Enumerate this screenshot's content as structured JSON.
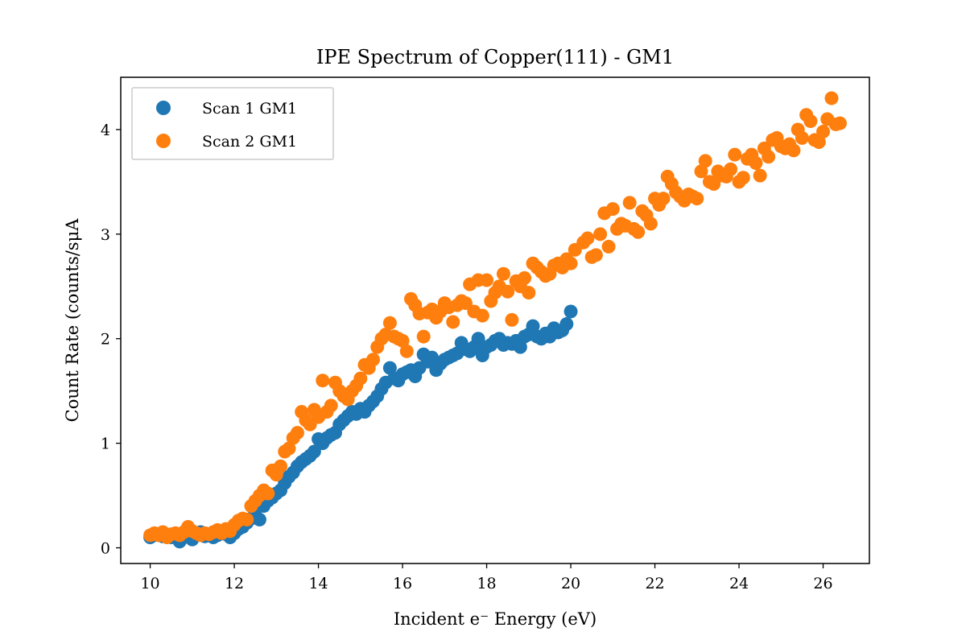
{
  "chart_data": {
    "type": "scatter",
    "title": "IPE Spectrum of Copper(111) - GM1",
    "xlabel": "Incident e⁻ Energy (eV)",
    "ylabel": "Count Rate (counts/sμA",
    "xlim": [
      9.3,
      27.1
    ],
    "ylim": [
      -0.15,
      4.5
    ],
    "xticks": [
      "10",
      "12",
      "14",
      "16",
      "18",
      "20",
      "22",
      "24",
      "26"
    ],
    "yticks": [
      "0",
      "1",
      "2",
      "3",
      "4"
    ],
    "grid": false,
    "legend_position": "top-left",
    "series": [
      {
        "name": "Scan 1 GM1",
        "color": "#1f77b4",
        "points": [
          [
            10.0,
            0.1
          ],
          [
            10.1,
            0.12
          ],
          [
            10.2,
            0.13
          ],
          [
            10.3,
            0.11
          ],
          [
            10.4,
            0.12
          ],
          [
            10.5,
            0.1
          ],
          [
            10.6,
            0.12
          ],
          [
            10.7,
            0.06
          ],
          [
            10.8,
            0.1
          ],
          [
            10.9,
            0.13
          ],
          [
            11.0,
            0.08
          ],
          [
            11.1,
            0.12
          ],
          [
            11.2,
            0.15
          ],
          [
            11.3,
            0.11
          ],
          [
            11.4,
            0.13
          ],
          [
            11.5,
            0.1
          ],
          [
            11.6,
            0.12
          ],
          [
            11.7,
            0.14
          ],
          [
            11.8,
            0.13
          ],
          [
            11.9,
            0.1
          ],
          [
            12.0,
            0.14
          ],
          [
            12.1,
            0.18
          ],
          [
            12.2,
            0.2
          ],
          [
            12.3,
            0.24
          ],
          [
            12.4,
            0.28
          ],
          [
            12.5,
            0.31
          ],
          [
            12.6,
            0.27
          ],
          [
            12.7,
            0.4
          ],
          [
            12.8,
            0.45
          ],
          [
            12.9,
            0.48
          ],
          [
            13.0,
            0.52
          ],
          [
            13.1,
            0.55
          ],
          [
            13.2,
            0.62
          ],
          [
            13.3,
            0.68
          ],
          [
            13.4,
            0.72
          ],
          [
            13.5,
            0.78
          ],
          [
            13.6,
            0.82
          ],
          [
            13.7,
            0.85
          ],
          [
            13.8,
            0.88
          ],
          [
            13.9,
            0.92
          ],
          [
            14.0,
            1.04
          ],
          [
            14.1,
            1.0
          ],
          [
            14.2,
            1.05
          ],
          [
            14.3,
            1.08
          ],
          [
            14.4,
            1.1
          ],
          [
            14.5,
            1.18
          ],
          [
            14.6,
            1.22
          ],
          [
            14.7,
            1.26
          ],
          [
            14.8,
            1.3
          ],
          [
            14.9,
            1.28
          ],
          [
            15.0,
            1.33
          ],
          [
            15.1,
            1.3
          ],
          [
            15.2,
            1.36
          ],
          [
            15.3,
            1.4
          ],
          [
            15.4,
            1.45
          ],
          [
            15.5,
            1.52
          ],
          [
            15.6,
            1.58
          ],
          [
            15.7,
            1.72
          ],
          [
            15.8,
            1.62
          ],
          [
            15.9,
            1.6
          ],
          [
            16.0,
            1.66
          ],
          [
            16.1,
            1.68
          ],
          [
            16.2,
            1.7
          ],
          [
            16.3,
            1.64
          ],
          [
            16.4,
            1.72
          ],
          [
            16.5,
            1.85
          ],
          [
            16.6,
            1.78
          ],
          [
            16.7,
            1.82
          ],
          [
            16.8,
            1.7
          ],
          [
            16.9,
            1.76
          ],
          [
            17.0,
            1.8
          ],
          [
            17.1,
            1.82
          ],
          [
            17.2,
            1.84
          ],
          [
            17.3,
            1.86
          ],
          [
            17.4,
            1.96
          ],
          [
            17.5,
            1.9
          ],
          [
            17.6,
            1.88
          ],
          [
            17.7,
            1.92
          ],
          [
            17.8,
            2.0
          ],
          [
            17.9,
            1.84
          ],
          [
            18.0,
            1.92
          ],
          [
            18.1,
            1.94
          ],
          [
            18.2,
            1.98
          ],
          [
            18.3,
            2.0
          ],
          [
            18.4,
            1.94
          ],
          [
            18.5,
            1.96
          ],
          [
            18.6,
            1.95
          ],
          [
            18.7,
            1.98
          ],
          [
            18.8,
            1.92
          ],
          [
            18.9,
            2.02
          ],
          [
            19.0,
            2.04
          ],
          [
            19.1,
            2.12
          ],
          [
            19.2,
            2.02
          ],
          [
            19.3,
            2.0
          ],
          [
            19.4,
            2.05
          ],
          [
            19.5,
            2.02
          ],
          [
            19.6,
            2.1
          ],
          [
            19.7,
            2.06
          ],
          [
            19.8,
            2.08
          ],
          [
            19.9,
            2.14
          ],
          [
            20.0,
            2.26
          ]
        ]
      },
      {
        "name": "Scan 2 GM1",
        "color": "#ff7f0e",
        "points": [
          [
            10.0,
            0.12
          ],
          [
            10.1,
            0.14
          ],
          [
            10.2,
            0.12
          ],
          [
            10.3,
            0.15
          ],
          [
            10.4,
            0.1
          ],
          [
            10.5,
            0.13
          ],
          [
            10.6,
            0.14
          ],
          [
            10.7,
            0.12
          ],
          [
            10.8,
            0.15
          ],
          [
            10.9,
            0.2
          ],
          [
            11.0,
            0.16
          ],
          [
            11.1,
            0.14
          ],
          [
            11.2,
            0.12
          ],
          [
            11.3,
            0.14
          ],
          [
            11.4,
            0.13
          ],
          [
            11.5,
            0.15
          ],
          [
            11.6,
            0.17
          ],
          [
            11.7,
            0.14
          ],
          [
            11.8,
            0.18
          ],
          [
            11.9,
            0.16
          ],
          [
            12.0,
            0.22
          ],
          [
            12.1,
            0.26
          ],
          [
            12.2,
            0.28
          ],
          [
            12.3,
            0.27
          ],
          [
            12.4,
            0.4
          ],
          [
            12.5,
            0.45
          ],
          [
            12.6,
            0.5
          ],
          [
            12.7,
            0.55
          ],
          [
            12.8,
            0.52
          ],
          [
            12.9,
            0.74
          ],
          [
            13.0,
            0.7
          ],
          [
            13.1,
            0.78
          ],
          [
            13.2,
            0.92
          ],
          [
            13.3,
            0.95
          ],
          [
            13.4,
            1.05
          ],
          [
            13.5,
            1.1
          ],
          [
            13.6,
            1.3
          ],
          [
            13.7,
            1.22
          ],
          [
            13.8,
            1.18
          ],
          [
            13.9,
            1.32
          ],
          [
            14.0,
            1.25
          ],
          [
            14.1,
            1.6
          ],
          [
            14.2,
            1.3
          ],
          [
            14.3,
            1.36
          ],
          [
            14.4,
            1.58
          ],
          [
            14.5,
            1.5
          ],
          [
            14.6,
            1.45
          ],
          [
            14.7,
            1.42
          ],
          [
            14.8,
            1.5
          ],
          [
            14.9,
            1.55
          ],
          [
            15.0,
            1.62
          ],
          [
            15.1,
            1.75
          ],
          [
            15.2,
            1.72
          ],
          [
            15.3,
            1.8
          ],
          [
            15.4,
            1.92
          ],
          [
            15.5,
            2.0
          ],
          [
            15.6,
            2.04
          ],
          [
            15.7,
            2.15
          ],
          [
            15.8,
            2.02
          ],
          [
            15.9,
            2.0
          ],
          [
            16.0,
            1.98
          ],
          [
            16.1,
            1.88
          ],
          [
            16.2,
            2.38
          ],
          [
            16.3,
            2.32
          ],
          [
            16.4,
            2.24
          ],
          [
            16.5,
            2.02
          ],
          [
            16.6,
            2.25
          ],
          [
            16.7,
            2.28
          ],
          [
            16.8,
            2.2
          ],
          [
            16.9,
            2.26
          ],
          [
            17.0,
            2.34
          ],
          [
            17.1,
            2.3
          ],
          [
            17.2,
            2.16
          ],
          [
            17.3,
            2.32
          ],
          [
            17.4,
            2.36
          ],
          [
            17.5,
            2.34
          ],
          [
            17.6,
            2.52
          ],
          [
            17.7,
            2.26
          ],
          [
            17.8,
            2.56
          ],
          [
            17.9,
            2.22
          ],
          [
            18.0,
            2.56
          ],
          [
            18.1,
            2.36
          ],
          [
            18.2,
            2.44
          ],
          [
            18.3,
            2.5
          ],
          [
            18.4,
            2.62
          ],
          [
            18.5,
            2.45
          ],
          [
            18.6,
            2.18
          ],
          [
            18.7,
            2.55
          ],
          [
            18.8,
            2.5
          ],
          [
            18.9,
            2.58
          ],
          [
            19.0,
            2.44
          ],
          [
            19.1,
            2.72
          ],
          [
            19.2,
            2.68
          ],
          [
            19.3,
            2.64
          ],
          [
            19.4,
            2.6
          ],
          [
            19.5,
            2.62
          ],
          [
            19.6,
            2.7
          ],
          [
            19.7,
            2.72
          ],
          [
            19.8,
            2.68
          ],
          [
            19.9,
            2.76
          ],
          [
            20.0,
            2.72
          ],
          [
            20.1,
            2.85
          ],
          [
            20.3,
            2.92
          ],
          [
            20.4,
            2.96
          ],
          [
            20.5,
            2.78
          ],
          [
            20.6,
            2.8
          ],
          [
            20.7,
            3.0
          ],
          [
            20.8,
            3.2
          ],
          [
            20.9,
            2.88
          ],
          [
            21.0,
            3.24
          ],
          [
            21.1,
            3.05
          ],
          [
            21.2,
            3.1
          ],
          [
            21.3,
            3.08
          ],
          [
            21.4,
            3.3
          ],
          [
            21.5,
            3.05
          ],
          [
            21.6,
            3.02
          ],
          [
            21.7,
            3.22
          ],
          [
            21.8,
            3.18
          ],
          [
            21.9,
            3.1
          ],
          [
            22.0,
            3.34
          ],
          [
            22.1,
            3.28
          ],
          [
            22.2,
            3.34
          ],
          [
            22.3,
            3.55
          ],
          [
            22.4,
            3.48
          ],
          [
            22.5,
            3.4
          ],
          [
            22.6,
            3.36
          ],
          [
            22.7,
            3.32
          ],
          [
            22.8,
            3.38
          ],
          [
            22.9,
            3.36
          ],
          [
            23.0,
            3.34
          ],
          [
            23.1,
            3.6
          ],
          [
            23.2,
            3.7
          ],
          [
            23.3,
            3.5
          ],
          [
            23.4,
            3.48
          ],
          [
            23.5,
            3.6
          ],
          [
            23.6,
            3.56
          ],
          [
            23.7,
            3.55
          ],
          [
            23.8,
            3.62
          ],
          [
            23.9,
            3.76
          ],
          [
            24.0,
            3.5
          ],
          [
            24.1,
            3.54
          ],
          [
            24.2,
            3.72
          ],
          [
            24.3,
            3.76
          ],
          [
            24.4,
            3.68
          ],
          [
            24.5,
            3.56
          ],
          [
            24.6,
            3.82
          ],
          [
            24.7,
            3.74
          ],
          [
            24.8,
            3.9
          ],
          [
            24.9,
            3.92
          ],
          [
            25.0,
            3.84
          ],
          [
            25.1,
            3.82
          ],
          [
            25.2,
            3.86
          ],
          [
            25.3,
            3.8
          ],
          [
            25.4,
            4.0
          ],
          [
            25.5,
            3.92
          ],
          [
            25.6,
            4.14
          ],
          [
            25.7,
            4.08
          ],
          [
            25.8,
            3.9
          ],
          [
            25.9,
            3.88
          ],
          [
            26.0,
            3.98
          ],
          [
            26.1,
            4.1
          ],
          [
            26.2,
            4.3
          ],
          [
            26.3,
            4.05
          ],
          [
            26.4,
            4.06
          ]
        ]
      }
    ]
  }
}
